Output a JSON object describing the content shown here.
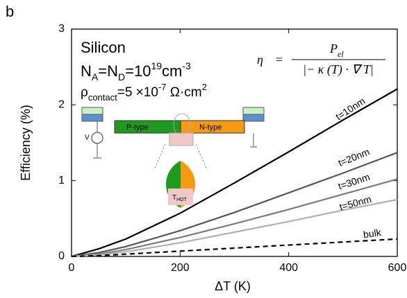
{
  "chart_data": {
    "type": "line",
    "panel_label": "b",
    "xlabel": "ΔT (K)",
    "ylabel": "Efficiency (%)",
    "x": [
      0,
      50,
      100,
      200,
      300,
      400,
      500,
      600
    ],
    "xlim": [
      0,
      600
    ],
    "xticks": [
      0,
      200,
      400,
      600
    ],
    "ylim": [
      0,
      3
    ],
    "yticks": [
      0,
      1,
      2,
      3
    ],
    "series": [
      {
        "name": "t=10nm",
        "color": "#000000",
        "dash": false,
        "values": [
          0,
          0.1,
          0.23,
          0.57,
          0.97,
          1.38,
          1.8,
          2.21
        ]
      },
      {
        "name": "t=20nm",
        "color": "#555555",
        "dash": false,
        "values": [
          0,
          0.05,
          0.13,
          0.34,
          0.58,
          0.84,
          1.1,
          1.37
        ]
      },
      {
        "name": "t=30nm",
        "color": "#7a7a7a",
        "dash": false,
        "values": [
          0,
          0.03,
          0.09,
          0.25,
          0.43,
          0.62,
          0.82,
          1.02
        ]
      },
      {
        "name": "t=50nm",
        "color": "#b0b0b0",
        "dash": false,
        "values": [
          0,
          0.02,
          0.06,
          0.18,
          0.32,
          0.46,
          0.61,
          0.75
        ]
      },
      {
        "name": "bulk",
        "color": "#000000",
        "dash": true,
        "values": [
          0,
          0.01,
          0.03,
          0.07,
          0.11,
          0.15,
          0.19,
          0.23
        ]
      }
    ],
    "annotations": {
      "material": "Silicon",
      "doping": [
        "N",
        "A",
        "=N",
        "D",
        "=10",
        "19",
        "cm",
        "-3"
      ],
      "contact": [
        "ρ",
        "contact",
        "=5 ×10",
        "-7",
        " Ω·cm",
        "2"
      ],
      "equation": {
        "lhs": "η",
        "eq": "=",
        "num": "P",
        "num_sub": "el",
        "den": "|− κ (T) · ∇ T|"
      },
      "inset": {
        "p": "P-type",
        "n": "N-type",
        "v": "V",
        "thot": "T",
        "thot_sub": "HOT"
      }
    }
  }
}
